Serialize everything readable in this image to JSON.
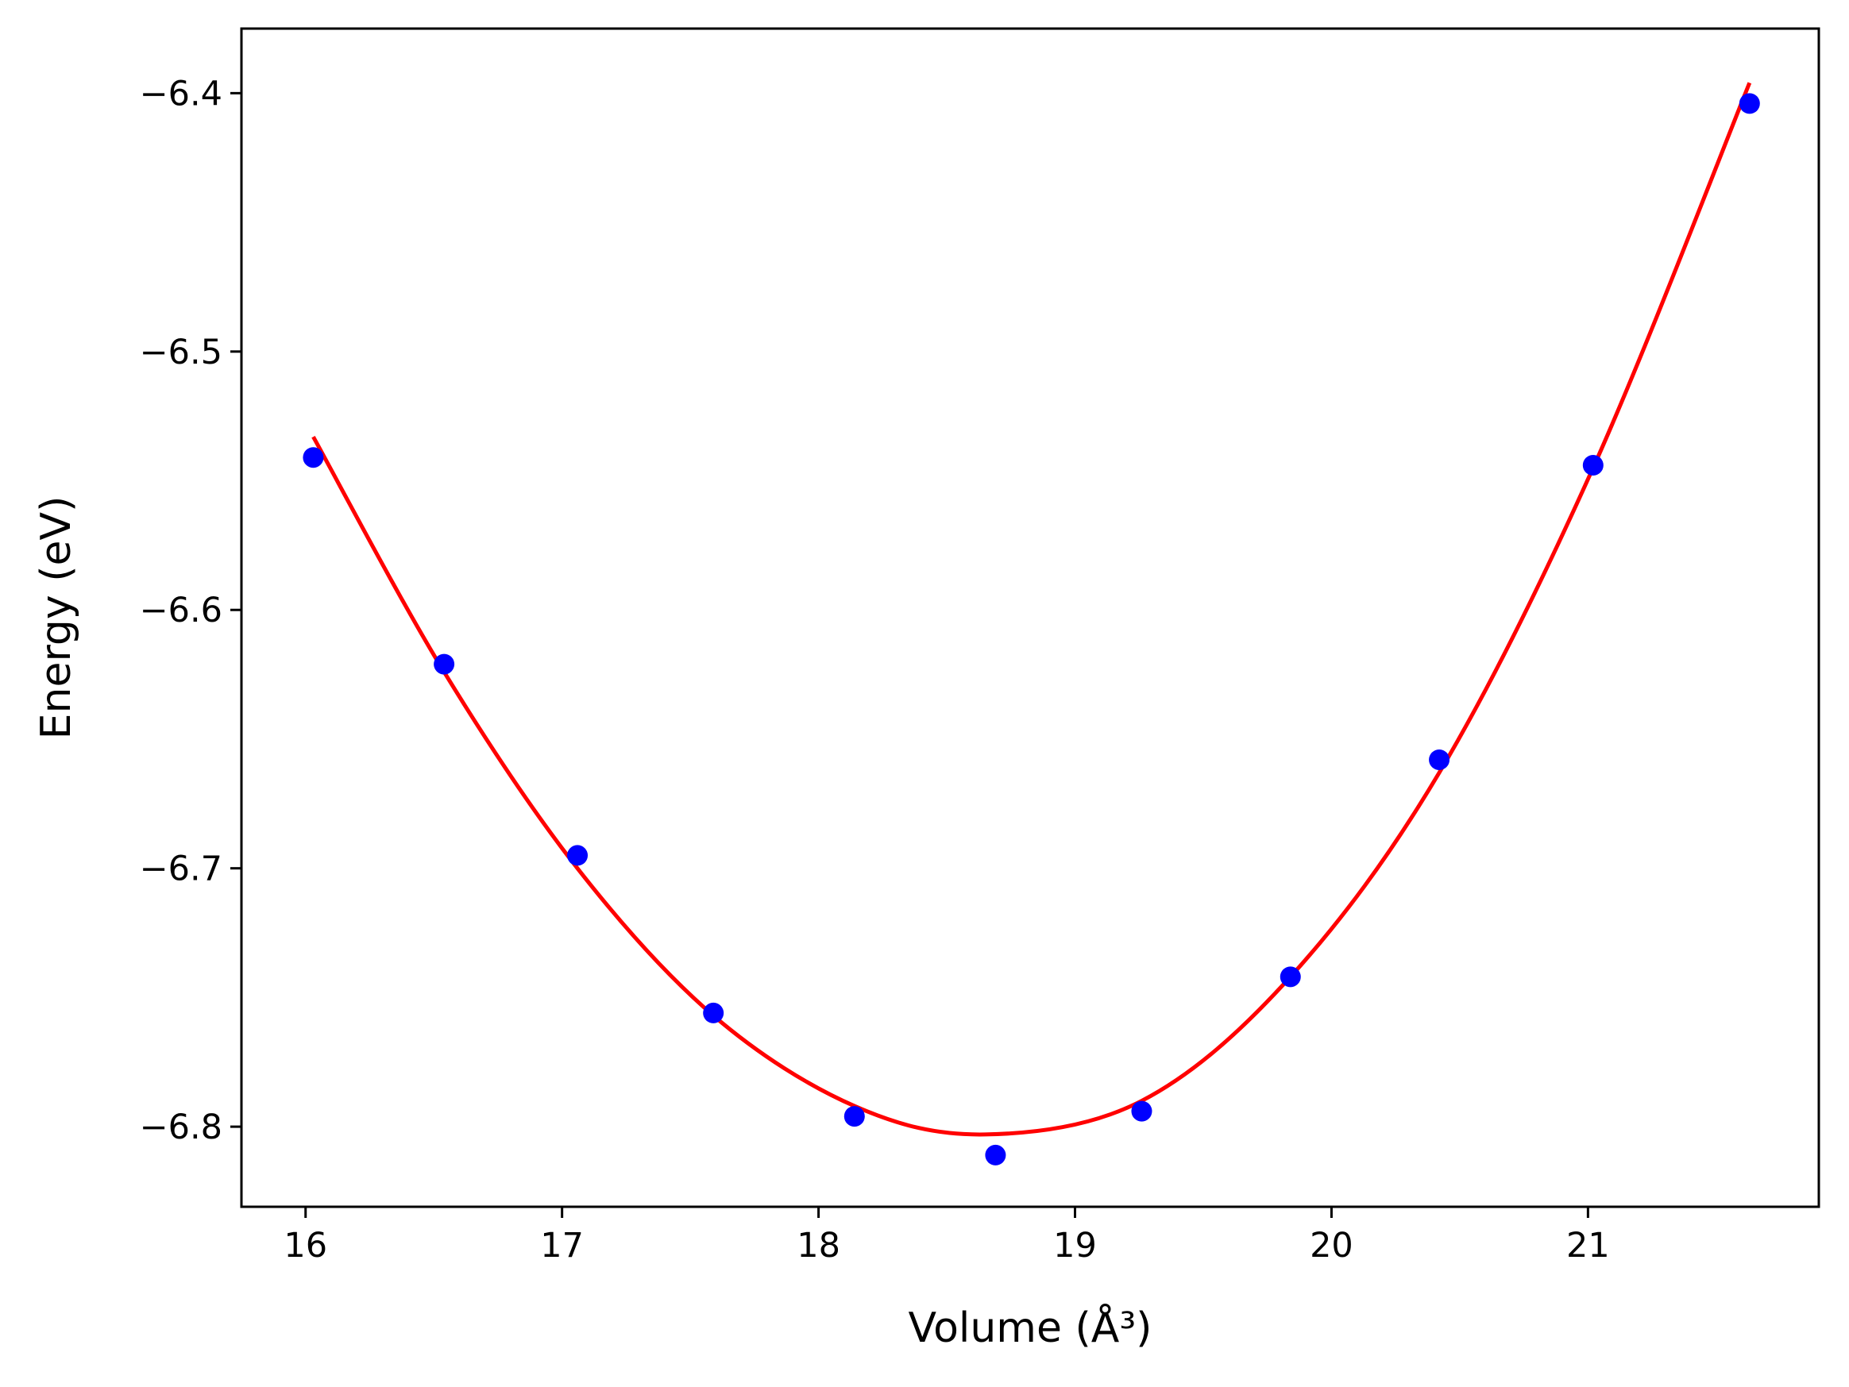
{
  "chart_data": {
    "type": "scatter",
    "xlabel": "Volume (Å³)",
    "ylabel": "Energy (eV)",
    "xlim": [
      15.75,
      21.9
    ],
    "ylim": [
      -6.831,
      -6.375
    ],
    "grid": false,
    "x_ticks": [
      16,
      17,
      18,
      19,
      20,
      21
    ],
    "x_tick_labels": [
      "16",
      "17",
      "18",
      "19",
      "20",
      "21"
    ],
    "y_ticks": [
      -6.4,
      -6.5,
      -6.6,
      -6.7,
      -6.8
    ],
    "y_tick_labels": [
      "−6.4",
      "−6.5",
      "−6.6",
      "−6.7",
      "−6.8"
    ],
    "series": [
      {
        "kind": "points",
        "color": "#0000ff",
        "points": [
          {
            "x": 16.03,
            "y": -6.541
          },
          {
            "x": 16.54,
            "y": -6.621
          },
          {
            "x": 17.06,
            "y": -6.695
          },
          {
            "x": 17.59,
            "y": -6.756
          },
          {
            "x": 18.14,
            "y": -6.796
          },
          {
            "x": 18.69,
            "y": -6.811
          },
          {
            "x": 19.26,
            "y": -6.794
          },
          {
            "x": 19.84,
            "y": -6.742
          },
          {
            "x": 20.42,
            "y": -6.658
          },
          {
            "x": 21.02,
            "y": -6.544
          },
          {
            "x": 21.63,
            "y": -6.404
          }
        ]
      },
      {
        "kind": "fit-curve",
        "color": "#ff0000",
        "points": [
          {
            "x": 16.03,
            "y": -6.533
          },
          {
            "x": 16.54,
            "y": -6.624
          },
          {
            "x": 17.06,
            "y": -6.7
          },
          {
            "x": 17.59,
            "y": -6.757
          },
          {
            "x": 18.14,
            "y": -6.792
          },
          {
            "x": 18.65,
            "y": -6.803
          },
          {
            "x": 19.26,
            "y": -6.79
          },
          {
            "x": 19.84,
            "y": -6.742
          },
          {
            "x": 20.42,
            "y": -6.663
          },
          {
            "x": 21.02,
            "y": -6.545
          },
          {
            "x": 21.63,
            "y": -6.396
          }
        ]
      }
    ]
  }
}
